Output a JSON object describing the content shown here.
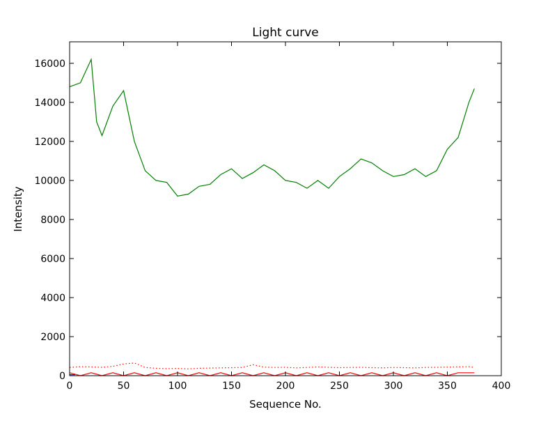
{
  "chart_data": {
    "type": "line",
    "title": "Light curve",
    "xlabel": "Sequence No.",
    "ylabel": "Intensity",
    "xlim": [
      0,
      400
    ],
    "ylim": [
      0,
      17100
    ],
    "xticks": [
      0,
      50,
      100,
      150,
      200,
      250,
      300,
      350,
      400
    ],
    "yticks": [
      0,
      2000,
      4000,
      6000,
      8000,
      10000,
      12000,
      14000,
      16000
    ],
    "grid": false,
    "legend": "none",
    "series": [
      {
        "style": "solid",
        "color": "#008000",
        "x": [
          0,
          10,
          20,
          25,
          30,
          40,
          50,
          60,
          70,
          80,
          90,
          100,
          110,
          120,
          130,
          140,
          150,
          160,
          170,
          180,
          190,
          200,
          210,
          220,
          230,
          240,
          250,
          260,
          270,
          280,
          290,
          300,
          310,
          320,
          330,
          340,
          350,
          360,
          370,
          375
        ],
        "y": [
          14800,
          15000,
          16200,
          13000,
          12300,
          13800,
          14600,
          12000,
          10500,
          10000,
          9900,
          9200,
          9300,
          9700,
          9800,
          10300,
          10600,
          10100,
          10400,
          10800,
          10500,
          10000,
          9900,
          9600,
          10000,
          9600,
          10200,
          10600,
          11100,
          10900,
          10500,
          10200,
          10300,
          10600,
          10200,
          10500,
          11600,
          12200,
          14000,
          14700
        ]
      },
      {
        "style": "dotted",
        "color": "#ff0000",
        "x": [
          0,
          10,
          20,
          30,
          40,
          50,
          60,
          70,
          80,
          90,
          100,
          110,
          120,
          130,
          140,
          150,
          160,
          170,
          180,
          190,
          200,
          210,
          220,
          230,
          240,
          250,
          260,
          270,
          280,
          290,
          300,
          310,
          320,
          330,
          340,
          350,
          360,
          370,
          375
        ],
        "y": [
          420,
          460,
          450,
          430,
          480,
          600,
          650,
          420,
          380,
          360,
          370,
          350,
          380,
          390,
          400,
          410,
          420,
          560,
          440,
          420,
          430,
          400,
          420,
          450,
          430,
          410,
          420,
          430,
          410,
          400,
          420,
          410,
          400,
          420,
          430,
          440,
          450,
          460,
          420
        ]
      },
      {
        "style": "solid",
        "color": "#ff0000",
        "x": [
          0,
          10,
          20,
          30,
          40,
          50,
          60,
          70,
          80,
          90,
          100,
          110,
          120,
          130,
          140,
          150,
          160,
          170,
          180,
          190,
          200,
          210,
          220,
          230,
          240,
          250,
          260,
          270,
          280,
          290,
          300,
          310,
          320,
          330,
          340,
          350,
          360,
          370,
          375
        ],
        "y": [
          150,
          0,
          150,
          0,
          150,
          0,
          150,
          0,
          150,
          0,
          150,
          0,
          150,
          0,
          150,
          0,
          150,
          0,
          150,
          0,
          150,
          0,
          150,
          0,
          150,
          0,
          150,
          0,
          150,
          0,
          150,
          0,
          150,
          0,
          150,
          0,
          150,
          150,
          150
        ]
      },
      {
        "style": "solid",
        "color": "#0000ff",
        "x": [
          0,
          5
        ],
        "y": [
          50,
          50
        ]
      }
    ]
  }
}
